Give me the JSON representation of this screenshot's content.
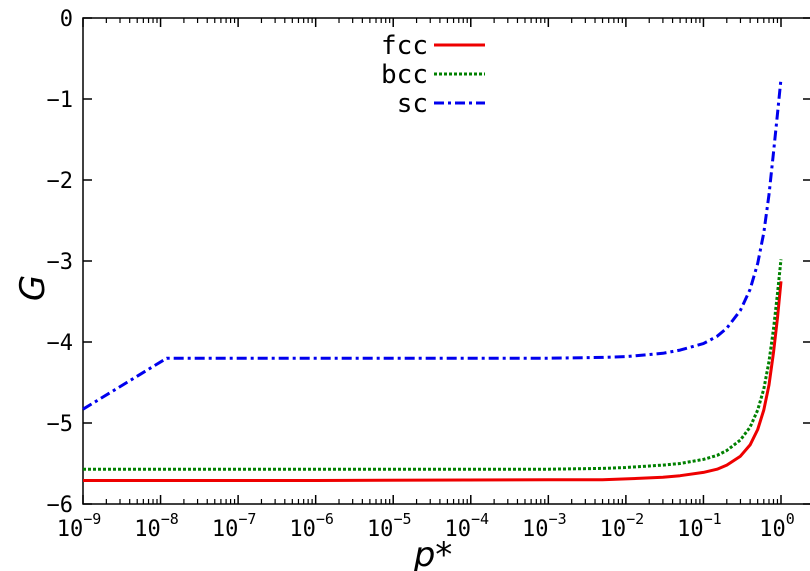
{
  "chart_data": {
    "type": "line",
    "title": "",
    "xlabel": "p*",
    "ylabel": "G",
    "x_scale": "log",
    "xlim": [
      1e-09,
      1.2
    ],
    "ylim": [
      -6,
      0
    ],
    "grid": false,
    "legend_position": "top-center",
    "x_ticks": [
      {
        "base": "10",
        "exp": "−9",
        "value": 1e-09
      },
      {
        "base": "10",
        "exp": "−8",
        "value": 1e-08
      },
      {
        "base": "10",
        "exp": "−7",
        "value": 1e-07
      },
      {
        "base": "10",
        "exp": "−6",
        "value": 1e-06
      },
      {
        "base": "10",
        "exp": "−5",
        "value": 1e-05
      },
      {
        "base": "10",
        "exp": "−4",
        "value": 0.0001
      },
      {
        "base": "10",
        "exp": "−3",
        "value": 0.001
      },
      {
        "base": "10",
        "exp": "−2",
        "value": 0.01
      },
      {
        "base": "10",
        "exp": "−1",
        "value": 0.1
      },
      {
        "base": "10",
        "exp": "0",
        "value": 1
      }
    ],
    "y_ticks": [
      {
        "label": "0",
        "value": 0
      },
      {
        "label": "−1",
        "value": -1
      },
      {
        "label": "−2",
        "value": -2
      },
      {
        "label": "−3",
        "value": -3
      },
      {
        "label": "−4",
        "value": -4
      },
      {
        "label": "−5",
        "value": -5
      },
      {
        "label": "−6",
        "value": -6
      }
    ],
    "series": [
      {
        "name": "fcc",
        "color": "#ee0000",
        "dash": "solid",
        "points": [
          [
            1e-09,
            -5.71
          ],
          [
            1e-06,
            -5.71
          ],
          [
            0.001,
            -5.7
          ],
          [
            0.005,
            -5.7
          ],
          [
            0.01,
            -5.69
          ],
          [
            0.03,
            -5.67
          ],
          [
            0.05,
            -5.65
          ],
          [
            0.1,
            -5.61
          ],
          [
            0.15,
            -5.57
          ],
          [
            0.2,
            -5.52
          ],
          [
            0.3,
            -5.41
          ],
          [
            0.4,
            -5.27
          ],
          [
            0.5,
            -5.08
          ],
          [
            0.6,
            -4.84
          ],
          [
            0.7,
            -4.53
          ],
          [
            0.8,
            -4.13
          ],
          [
            0.9,
            -3.7
          ],
          [
            1.0,
            -3.25
          ]
        ]
      },
      {
        "name": "bcc",
        "color": "#008000",
        "dash": "dotted",
        "points": [
          [
            1e-09,
            -5.57
          ],
          [
            1e-06,
            -5.57
          ],
          [
            0.001,
            -5.57
          ],
          [
            0.005,
            -5.56
          ],
          [
            0.01,
            -5.55
          ],
          [
            0.03,
            -5.52
          ],
          [
            0.05,
            -5.5
          ],
          [
            0.1,
            -5.45
          ],
          [
            0.15,
            -5.4
          ],
          [
            0.2,
            -5.34
          ],
          [
            0.3,
            -5.21
          ],
          [
            0.4,
            -5.05
          ],
          [
            0.5,
            -4.84
          ],
          [
            0.6,
            -4.58
          ],
          [
            0.7,
            -4.24
          ],
          [
            0.8,
            -3.84
          ],
          [
            0.9,
            -3.4
          ],
          [
            1.0,
            -2.98
          ]
        ]
      },
      {
        "name": "sc",
        "color": "#0000ee",
        "dash": "dash-dot",
        "points": [
          [
            1e-09,
            -4.83
          ],
          [
            1.2e-08,
            -4.2
          ],
          [
            1e-06,
            -4.2
          ],
          [
            0.0001,
            -4.2
          ],
          [
            0.001,
            -4.2
          ],
          [
            0.005,
            -4.19
          ],
          [
            0.01,
            -4.18
          ],
          [
            0.03,
            -4.14
          ],
          [
            0.05,
            -4.1
          ],
          [
            0.1,
            -4.02
          ],
          [
            0.15,
            -3.93
          ],
          [
            0.2,
            -3.83
          ],
          [
            0.3,
            -3.61
          ],
          [
            0.4,
            -3.35
          ],
          [
            0.5,
            -3.03
          ],
          [
            0.6,
            -2.65
          ],
          [
            0.7,
            -2.18
          ],
          [
            0.8,
            -1.66
          ],
          [
            0.9,
            -1.18
          ],
          [
            1.0,
            -0.75
          ]
        ]
      }
    ]
  }
}
